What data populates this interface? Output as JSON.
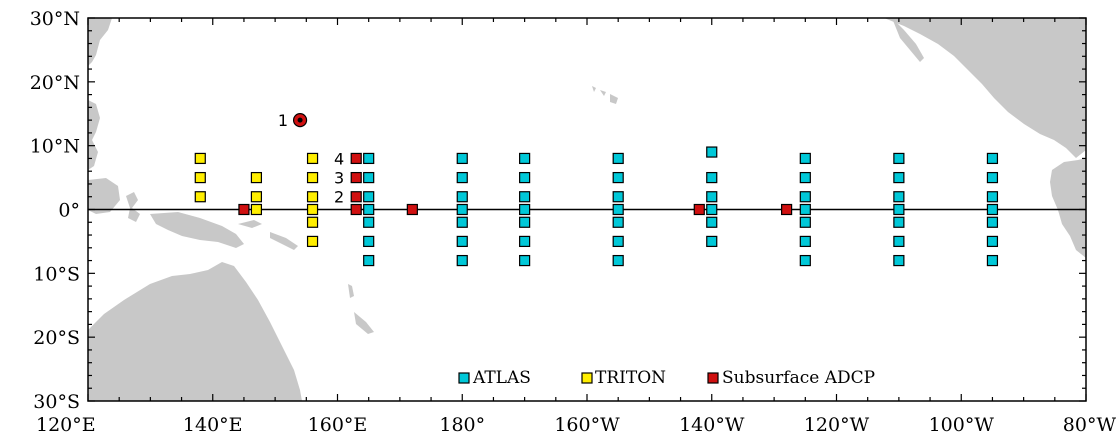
{
  "map": {
    "lat_labels": [
      "30°N",
      "20°N",
      "10°N",
      "0°",
      "10°S",
      "20°S",
      "30°S"
    ],
    "lon_labels": [
      "120°E",
      "140°E",
      "160°E",
      "180°",
      "160°W",
      "140°W",
      "120°W",
      "100°W",
      "80°W"
    ],
    "legend": {
      "atlas": "ATLAS",
      "triton": "TRITON",
      "adcp": "Subsurface ADCP"
    },
    "site_numbers": [
      "1",
      "2",
      "3",
      "4"
    ],
    "colors": {
      "atlas": "#00c8d8",
      "triton": "#ffee00",
      "adcp": "#d01010",
      "land": "#c8c8c8",
      "frame": "#000000"
    }
  },
  "chart_data": {
    "type": "scatter",
    "title": "",
    "x_unit": "longitude (deg E)",
    "y_unit": "latitude (deg N)",
    "xlim": [
      120,
      280
    ],
    "ylim": [
      -30,
      30
    ],
    "series": [
      {
        "name": "ATLAS",
        "marker": "square",
        "points": [
          [
            165,
            8
          ],
          [
            165,
            5
          ],
          [
            165,
            2
          ],
          [
            165,
            0
          ],
          [
            165,
            -2
          ],
          [
            165,
            -5
          ],
          [
            165,
            -8
          ],
          [
            180,
            8
          ],
          [
            180,
            5
          ],
          [
            180,
            2
          ],
          [
            180,
            0
          ],
          [
            180,
            -2
          ],
          [
            180,
            -5
          ],
          [
            180,
            -8
          ],
          [
            190,
            8
          ],
          [
            190,
            5
          ],
          [
            190,
            2
          ],
          [
            190,
            0
          ],
          [
            190,
            -2
          ],
          [
            190,
            -5
          ],
          [
            190,
            -8
          ],
          [
            205,
            8
          ],
          [
            205,
            5
          ],
          [
            205,
            2
          ],
          [
            205,
            0
          ],
          [
            205,
            -2
          ],
          [
            205,
            -5
          ],
          [
            205,
            -8
          ],
          [
            220,
            9
          ],
          [
            220,
            5
          ],
          [
            220,
            2
          ],
          [
            220,
            0
          ],
          [
            220,
            -2
          ],
          [
            220,
            -5
          ],
          [
            235,
            8
          ],
          [
            235,
            5
          ],
          [
            235,
            2
          ],
          [
            235,
            0
          ],
          [
            235,
            -2
          ],
          [
            235,
            -5
          ],
          [
            235,
            -8
          ],
          [
            250,
            8
          ],
          [
            250,
            5
          ],
          [
            250,
            2
          ],
          [
            250,
            0
          ],
          [
            250,
            -2
          ],
          [
            250,
            -5
          ],
          [
            250,
            -8
          ],
          [
            265,
            8
          ],
          [
            265,
            5
          ],
          [
            265,
            2
          ],
          [
            265,
            0
          ],
          [
            265,
            -2
          ],
          [
            265,
            -5
          ],
          [
            265,
            -8
          ]
        ]
      },
      {
        "name": "TRITON",
        "marker": "square",
        "points": [
          [
            138,
            8
          ],
          [
            138,
            5
          ],
          [
            138,
            2
          ],
          [
            147,
            5
          ],
          [
            147,
            2
          ],
          [
            147,
            0
          ],
          [
            156,
            8
          ],
          [
            156,
            5
          ],
          [
            156,
            2
          ],
          [
            156,
            0
          ],
          [
            156,
            -2
          ],
          [
            156,
            -5
          ]
        ]
      },
      {
        "name": "Subsurface ADCP",
        "marker": "square",
        "points": [
          [
            145,
            0
          ],
          [
            163,
            0
          ],
          [
            163,
            2
          ],
          [
            163,
            5
          ],
          [
            163,
            8
          ],
          [
            172,
            0
          ],
          [
            218,
            0
          ],
          [
            232,
            0
          ]
        ]
      },
      {
        "name": "",
        "marker": "circle",
        "points": [
          [
            154,
            14
          ]
        ]
      }
    ],
    "numbered_sites": [
      {
        "label": "1",
        "lon": 154,
        "lat": 14
      },
      {
        "label": "2",
        "lon": 163,
        "lat": 2
      },
      {
        "label": "3",
        "lon": 163,
        "lat": 5
      },
      {
        "label": "4",
        "lon": 163,
        "lat": 8
      }
    ]
  }
}
